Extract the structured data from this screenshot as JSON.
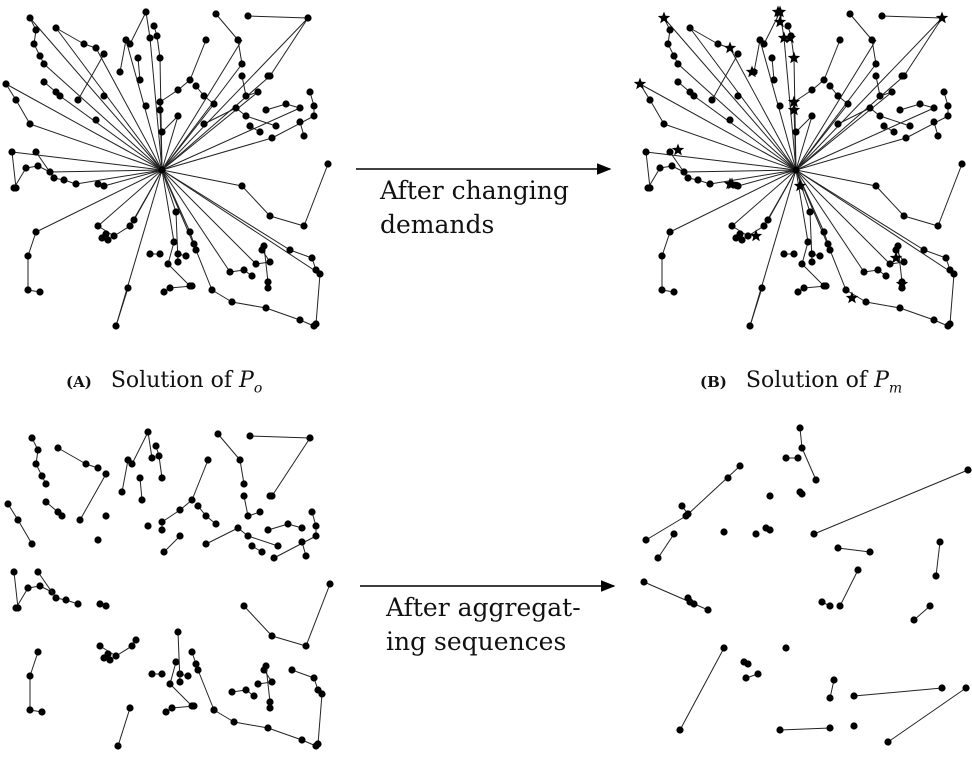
{
  "arrow_top": {
    "text_line1": "After changing",
    "text_line2": "demands"
  },
  "arrow_bottom": {
    "text_line1": "After aggregat-",
    "text_line2": "ing sequences"
  },
  "captions": {
    "a": {
      "label": "(A)",
      "text": "Solution of",
      "math_symbol": "P",
      "math_sub": "o"
    },
    "b": {
      "label": "(B)",
      "text": "Solution of",
      "math_symbol": "P",
      "math_sub": "m"
    }
  },
  "panels": {
    "A": {
      "depot": true,
      "routes": [
        [
          [
            30,
            18
          ],
          [
            36,
            30
          ],
          [
            34,
            44
          ],
          [
            40,
            56
          ],
          [
            44,
            64
          ]
        ],
        [
          [
            56,
            28
          ],
          [
            84,
            44
          ],
          [
            96,
            48
          ]
        ],
        [
          [
            130,
            44
          ],
          [
            146,
            12
          ],
          [
            150,
            38
          ]
        ],
        [
          [
            154,
            26
          ],
          [
            157,
            36
          ],
          [
            160,
            58
          ]
        ],
        [
          [
            120,
            72
          ],
          [
            126,
            40
          ]
        ],
        [
          [
            140,
            80
          ],
          [
            138,
            58
          ]
        ],
        [
          [
            44,
            82
          ],
          [
            56,
            92
          ],
          [
            60,
            96
          ]
        ],
        [
          [
            6,
            84
          ],
          [
            16,
            100
          ],
          [
            30,
            124
          ]
        ],
        [
          [
            216,
            14
          ],
          [
            238,
            40
          ],
          [
            242,
            64
          ]
        ],
        [
          [
            248,
            16
          ],
          [
            308,
            18
          ],
          [
            270,
            76
          ]
        ],
        [
          [
            206,
            40
          ],
          [
            190,
            80
          ],
          [
            178,
            90
          ],
          [
            160,
            102
          ],
          [
            160,
            110
          ]
        ],
        [
          [
            162,
            132
          ],
          [
            178,
            116
          ]
        ],
        [
          [
            104,
            54
          ],
          [
            78,
            100
          ]
        ],
        [
          [
            196,
            86
          ],
          [
            204,
            96
          ],
          [
            214,
            104
          ]
        ],
        [
          [
            242,
            76
          ],
          [
            246,
            96
          ],
          [
            258,
            92
          ]
        ],
        [
          [
            204,
            124
          ],
          [
            236,
            108
          ],
          [
            246,
            116
          ],
          [
            276,
            126
          ]
        ],
        [
          [
            250,
            126
          ],
          [
            260,
            132
          ]
        ],
        [
          [
            266,
            110
          ],
          [
            286,
            104
          ],
          [
            300,
            108
          ]
        ],
        [
          [
            310,
            92
          ],
          [
            314,
            106
          ],
          [
            314,
            116
          ],
          [
            272,
            138
          ]
        ],
        [
          [
            300,
            122
          ],
          [
            304,
            136
          ]
        ],
        [
          [
            12,
            152
          ],
          [
            16,
            188
          ]
        ],
        [
          [
            14,
            188
          ],
          [
            26,
            168
          ],
          [
            38,
            166
          ],
          [
            50,
            172
          ]
        ],
        [
          [
            36,
            152
          ],
          [
            54,
            178
          ],
          [
            64,
            180
          ],
          [
            76,
            184
          ]
        ],
        [
          [
            98,
            184
          ],
          [
            104,
            186
          ]
        ],
        [
          [
            328,
            164
          ],
          [
            304,
            226
          ],
          [
            270,
            216
          ],
          [
            242,
            186
          ]
        ],
        [
          [
            134,
            220
          ],
          [
            130,
            226
          ],
          [
            114,
            236
          ],
          [
            98,
            226
          ]
        ],
        [
          [
            36,
            232
          ],
          [
            28,
            256
          ],
          [
            28,
            290
          ],
          [
            40,
            292
          ]
        ],
        [
          [
            102,
            238
          ],
          [
            108,
            240
          ]
        ],
        [
          [
            174,
            242
          ],
          [
            168,
            264
          ],
          [
            190,
            286
          ]
        ],
        [
          [
            178,
            254
          ],
          [
            186,
            256
          ]
        ],
        [
          [
            196,
            250
          ],
          [
            212,
            290
          ]
        ],
        [
          [
            212,
            290
          ],
          [
            232,
            302
          ],
          [
            266,
            308
          ],
          [
            300,
            320
          ],
          [
            314,
            326
          ]
        ],
        [
          [
            320,
            274
          ],
          [
            316,
            324
          ]
        ],
        [
          [
            230,
            272
          ],
          [
            244,
            270
          ],
          [
            252,
            276
          ]
        ],
        [
          [
            256,
            264
          ],
          [
            270,
            262
          ],
          [
            262,
            250
          ]
        ],
        [
          [
            264,
            246
          ],
          [
            268,
            282
          ],
          [
            268,
            288
          ]
        ],
        [
          [
            176,
            212
          ],
          [
            178,
            262
          ]
        ],
        [
          [
            290,
            250
          ],
          [
            312,
            258
          ],
          [
            316,
            270
          ]
        ],
        [
          [
            116,
            326
          ],
          [
            128,
            288
          ]
        ],
        [
          [
            192,
            286
          ],
          [
            170,
            288
          ],
          [
            164,
            292
          ]
        ],
        [
          [
            160,
            254
          ],
          [
            150,
            254
          ]
        ],
        [
          [
            190,
            232
          ],
          [
            194,
            244
          ]
        ]
      ],
      "spokes": [
        [
          30,
          18
        ],
        [
          44,
          64
        ],
        [
          56,
          28
        ],
        [
          96,
          48
        ],
        [
          150,
          38
        ],
        [
          160,
          58
        ],
        [
          126,
          40
        ],
        [
          6,
          84
        ],
        [
          242,
          64
        ],
        [
          270,
          76
        ],
        [
          308,
          18
        ],
        [
          160,
          110
        ],
        [
          178,
          116
        ],
        [
          60,
          96
        ],
        [
          258,
          92
        ],
        [
          214,
          104
        ],
        [
          300,
          108
        ],
        [
          272,
          138
        ],
        [
          12,
          152
        ],
        [
          50,
          172
        ],
        [
          76,
          184
        ],
        [
          104,
          186
        ],
        [
          242,
          186
        ],
        [
          98,
          226
        ],
        [
          134,
          220
        ],
        [
          36,
          232
        ],
        [
          174,
          242
        ],
        [
          196,
          250
        ],
        [
          290,
          250
        ],
        [
          230,
          272
        ],
        [
          256,
          264
        ],
        [
          116,
          326
        ],
        [
          190,
          232
        ],
        [
          320,
          274
        ],
        [
          176,
          212
        ],
        [
          130,
          226
        ],
        [
          30,
          124
        ],
        [
          242,
          40
        ]
      ],
      "depot_xy": [
        162,
        170
      ],
      "extra_nodes": [
        [
          104,
          96
        ],
        [
          96,
          120
        ],
        [
          146,
          106
        ],
        [
          106,
          234
        ],
        [
          268,
          76
        ]
      ]
    }
  }
}
